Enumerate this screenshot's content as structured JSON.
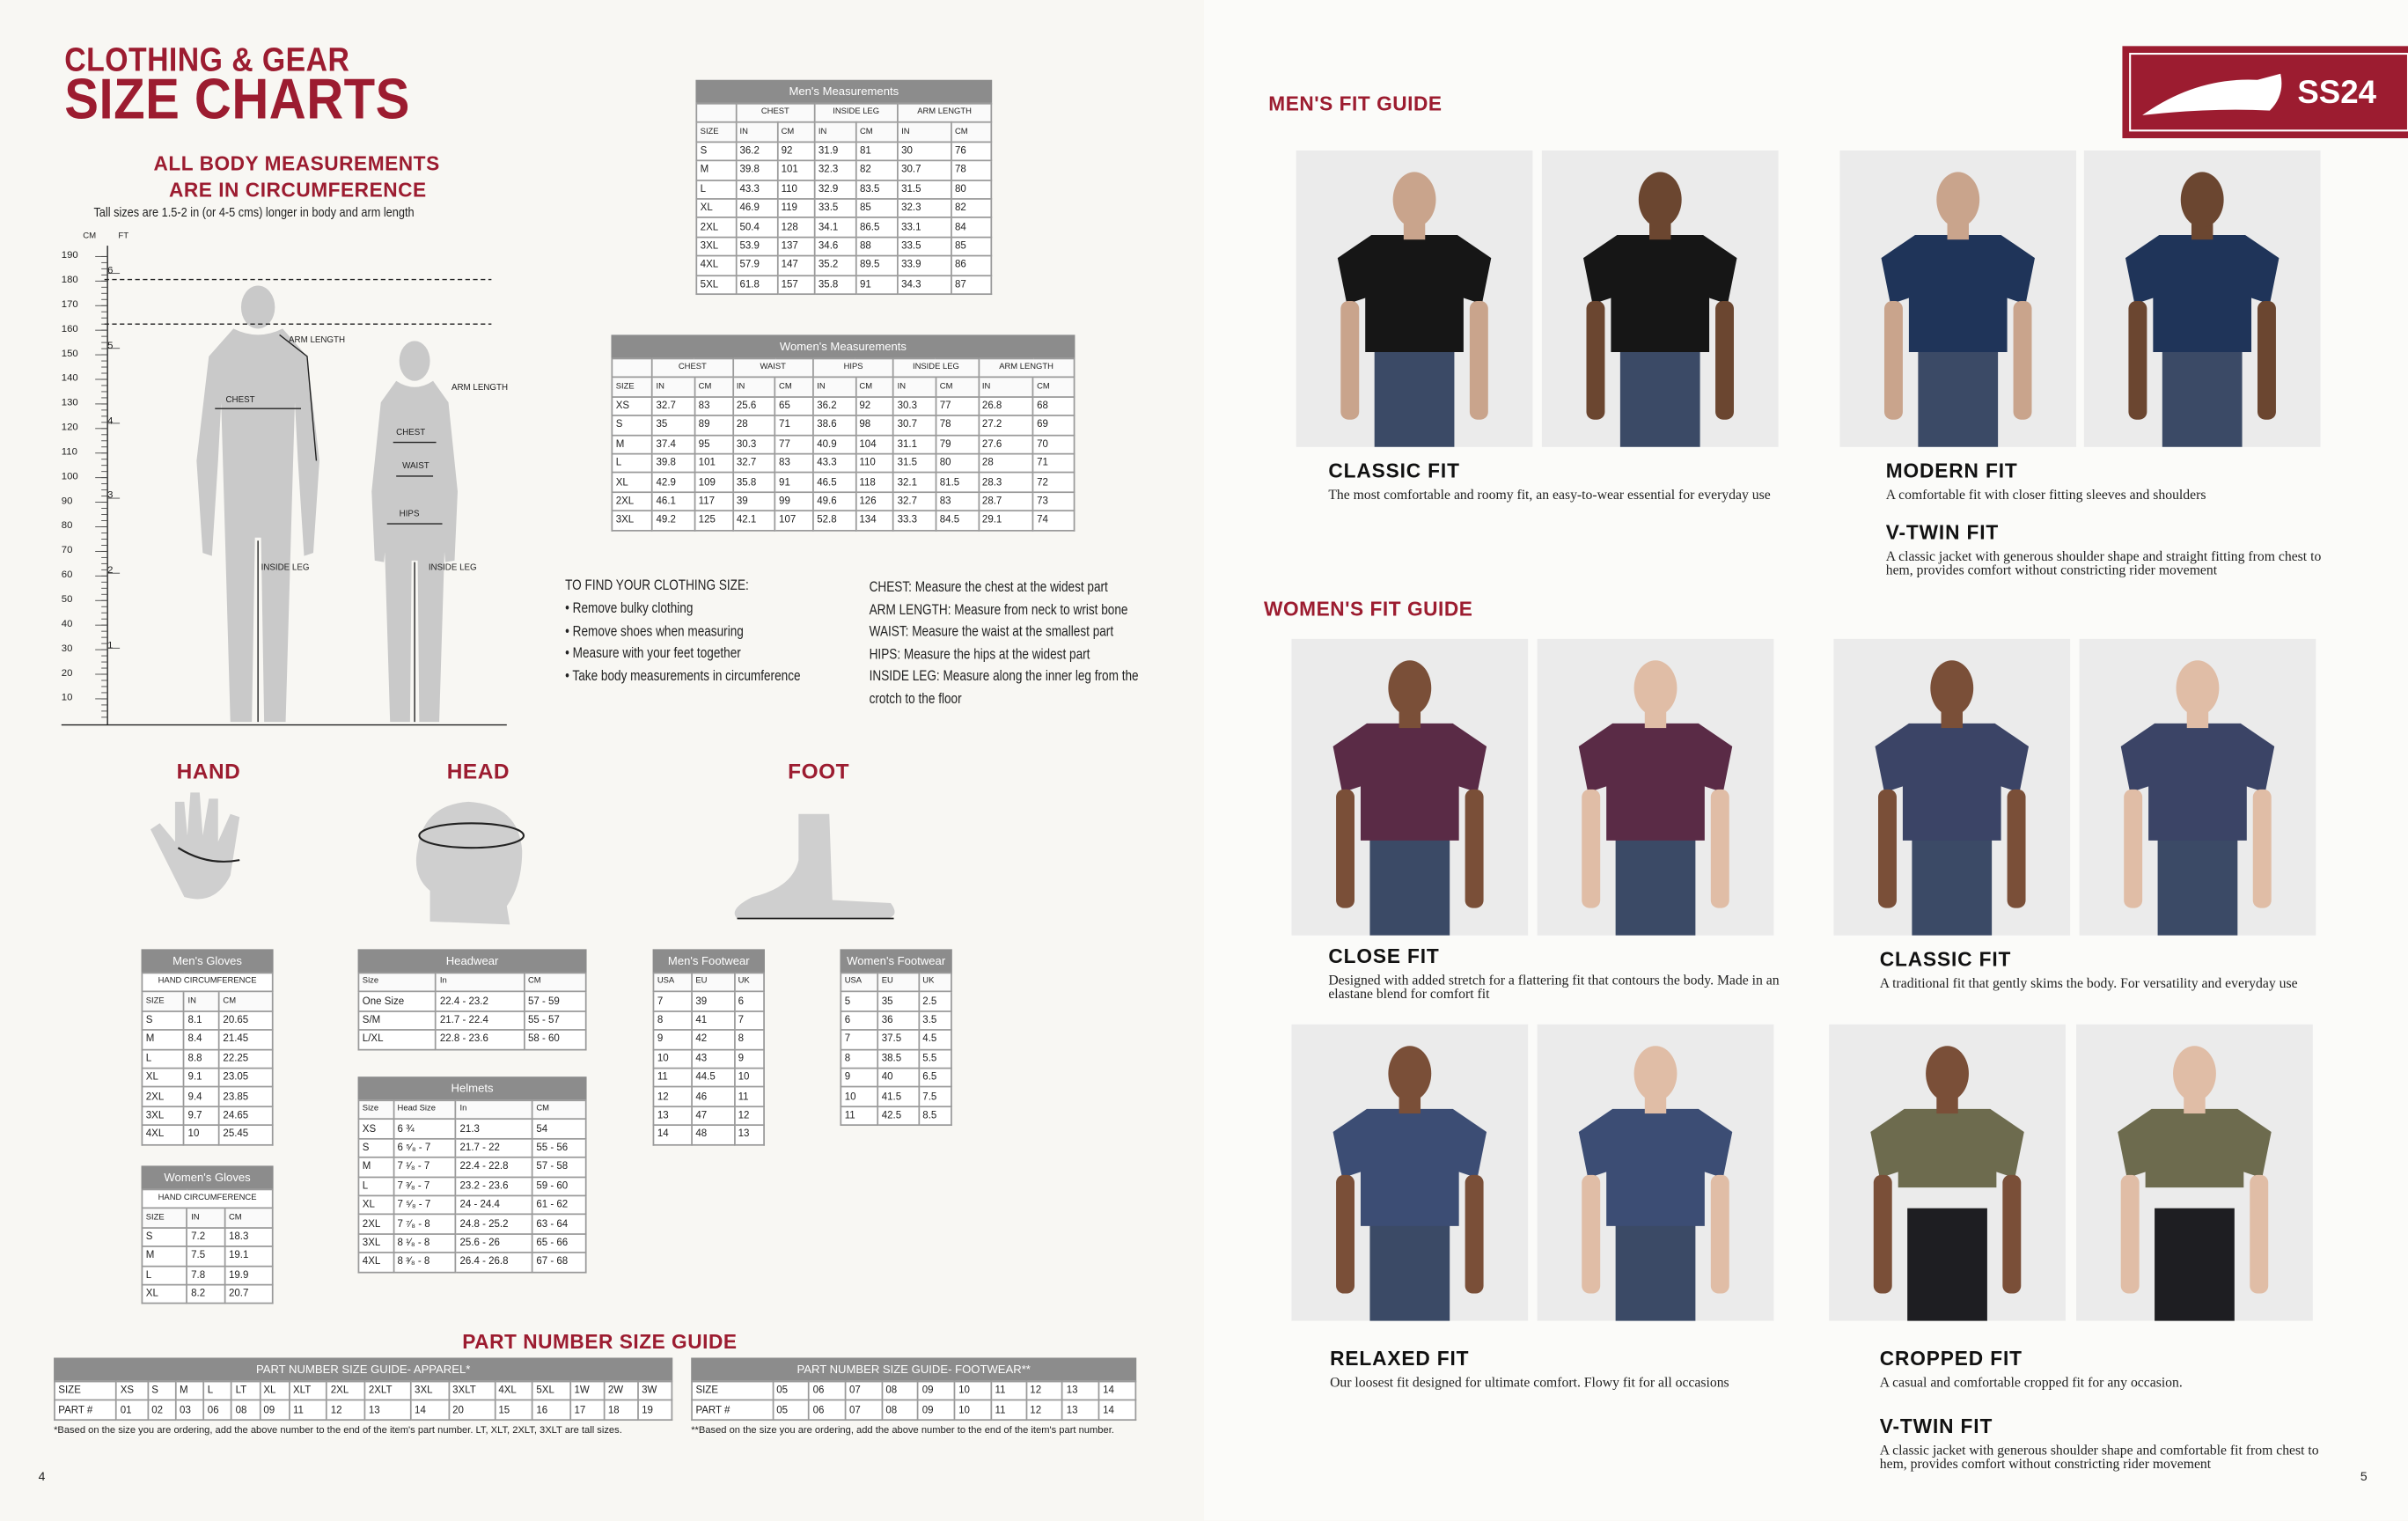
{
  "header": {
    "title_line1": "CLOTHING & GEAR",
    "title_line2": "SIZE CHARTS",
    "badge": "SS24"
  },
  "body_measurements": {
    "heading_line1": "ALL BODY MEASUREMENTS",
    "heading_line2": "ARE IN CIRCUMFERENCE",
    "note": "Tall sizes are 1.5-2 in (or 4-5 cms) longer in body and arm  length",
    "cm_label": "CM",
    "ft_label": "FT",
    "cm_ticks": [
      "190",
      "180",
      "170",
      "160",
      "150",
      "140",
      "130",
      "120",
      "110",
      "100",
      "90",
      "80",
      "70",
      "60",
      "50",
      "40",
      "30",
      "20",
      "10"
    ],
    "ft_ticks": [
      "6",
      "5",
      "4",
      "3",
      "2",
      "1"
    ],
    "figure_labels": [
      "ARM LENGTH",
      "CHEST",
      "INSIDE LEG",
      "ARM LENGTH",
      "CHEST",
      "WAIST",
      "HIPS",
      "INSIDE LEG"
    ]
  },
  "instructions": {
    "heading": "TO FIND YOUR CLOTHING SIZE:",
    "items": [
      "• Remove bulky clothing",
      "• Remove shoes when measuring",
      "• Measure with your feet together",
      "• Take body measurements in circumference"
    ],
    "definitions": [
      "CHEST: Measure the chest at the widest part",
      "ARM LENGTH: Measure from neck to wrist bone",
      "WAIST: Measure the waist at the smallest part",
      "HIPS: Measure the hips at the widest part",
      "INSIDE LEG: Measure along the inner leg from the crotch to the floor"
    ]
  },
  "sections": {
    "hand": "HAND",
    "head": "HEAD",
    "foot": "FOOT",
    "part_number": "PART NUMBER SIZE GUIDE"
  },
  "tables": {
    "mens_measurements": {
      "title": "Men's Measurements",
      "group_headers": [
        "CHEST",
        "INSIDE LEG",
        "ARM LENGTH"
      ],
      "headers": [
        "SIZE",
        "IN",
        "CM",
        "IN",
        "CM",
        "IN",
        "CM"
      ],
      "rows": [
        [
          "S",
          "36.2",
          "92",
          "31.9",
          "81",
          "30",
          "76"
        ],
        [
          "M",
          "39.8",
          "101",
          "32.3",
          "82",
          "30.7",
          "78"
        ],
        [
          "L",
          "43.3",
          "110",
          "32.9",
          "83.5",
          "31.5",
          "80"
        ],
        [
          "XL",
          "46.9",
          "119",
          "33.5",
          "85",
          "32.3",
          "82"
        ],
        [
          "2XL",
          "50.4",
          "128",
          "34.1",
          "86.5",
          "33.1",
          "84"
        ],
        [
          "3XL",
          "53.9",
          "137",
          "34.6",
          "88",
          "33.5",
          "85"
        ],
        [
          "4XL",
          "57.9",
          "147",
          "35.2",
          "89.5",
          "33.9",
          "86"
        ],
        [
          "5XL",
          "61.8",
          "157",
          "35.8",
          "91",
          "34.3",
          "87"
        ]
      ]
    },
    "womens_measurements": {
      "title": "Women's Measurements",
      "group_headers": [
        "CHEST",
        "WAIST",
        "HIPS",
        "INSIDE LEG",
        "ARM LENGTH"
      ],
      "headers": [
        "SIZE",
        "IN",
        "CM",
        "IN",
        "CM",
        "IN",
        "CM",
        "IN",
        "CM",
        "IN",
        "CM"
      ],
      "rows": [
        [
          "XS",
          "32.7",
          "83",
          "25.6",
          "65",
          "36.2",
          "92",
          "30.3",
          "77",
          "26.8",
          "68"
        ],
        [
          "S",
          "35",
          "89",
          "28",
          "71",
          "38.6",
          "98",
          "30.7",
          "78",
          "27.2",
          "69"
        ],
        [
          "M",
          "37.4",
          "95",
          "30.3",
          "77",
          "40.9",
          "104",
          "31.1",
          "79",
          "27.6",
          "70"
        ],
        [
          "L",
          "39.8",
          "101",
          "32.7",
          "83",
          "43.3",
          "110",
          "31.5",
          "80",
          "28",
          "71"
        ],
        [
          "XL",
          "42.9",
          "109",
          "35.8",
          "91",
          "46.5",
          "118",
          "32.1",
          "81.5",
          "28.3",
          "72"
        ],
        [
          "2XL",
          "46.1",
          "117",
          "39",
          "99",
          "49.6",
          "126",
          "32.7",
          "83",
          "28.7",
          "73"
        ],
        [
          "3XL",
          "49.2",
          "125",
          "42.1",
          "107",
          "52.8",
          "134",
          "33.3",
          "84.5",
          "29.1",
          "74"
        ]
      ]
    },
    "mens_gloves": {
      "title": "Men's Gloves",
      "subtitle": "HAND CIRCUMFERENCE",
      "headers": [
        "SIZE",
        "IN",
        "CM"
      ],
      "rows": [
        [
          "S",
          "8.1",
          "20.65"
        ],
        [
          "M",
          "8.4",
          "21.45"
        ],
        [
          "L",
          "8.8",
          "22.25"
        ],
        [
          "XL",
          "9.1",
          "23.05"
        ],
        [
          "2XL",
          "9.4",
          "23.85"
        ],
        [
          "3XL",
          "9.7",
          "24.65"
        ],
        [
          "4XL",
          "10",
          "25.45"
        ]
      ]
    },
    "womens_gloves": {
      "title": "Women's Gloves",
      "subtitle": "HAND CIRCUMFERENCE",
      "headers": [
        "SIZE",
        "IN",
        "CM"
      ],
      "rows": [
        [
          "S",
          "7.2",
          "18.3"
        ],
        [
          "M",
          "7.5",
          "19.1"
        ],
        [
          "L",
          "7.8",
          "19.9"
        ],
        [
          "XL",
          "8.2",
          "20.7"
        ]
      ]
    },
    "headwear": {
      "title": "Headwear",
      "headers": [
        "Size",
        "In",
        "CM"
      ],
      "rows": [
        [
          "One Size",
          "22.4 - 23.2",
          "57 - 59"
        ],
        [
          "S/M",
          "21.7 - 22.4",
          "55 - 57"
        ],
        [
          "L/XL",
          "22.8 - 23.6",
          "58 - 60"
        ]
      ]
    },
    "helmets": {
      "title": "Helmets",
      "headers": [
        "Size",
        "Head Size",
        "In",
        "CM"
      ],
      "rows": [
        [
          "XS",
          "6 ¾",
          "21.3",
          "54"
        ],
        [
          "S",
          "6 ⁵⁄₈ - 7",
          "21.7 - 22",
          "55 - 56"
        ],
        [
          "M",
          "7 ¹⁄₈ - 7",
          "22.4 - 22.8",
          "57 - 58"
        ],
        [
          "L",
          "7 ³⁄₈ - 7",
          "23.2 - 23.6",
          "59 - 60"
        ],
        [
          "XL",
          "7 ⁵⁄₈ - 7",
          "24 - 24.4",
          "61 - 62"
        ],
        [
          "2XL",
          "7 ⁷⁄₈ - 8",
          "24.8 - 25.2",
          "63 - 64"
        ],
        [
          "3XL",
          "8 ¹⁄₈ - 8",
          "25.6 - 26",
          "65 - 66"
        ],
        [
          "4XL",
          "8 ³⁄₈ - 8",
          "26.4 - 26.8",
          "67 - 68"
        ]
      ]
    },
    "mens_footwear": {
      "title": "Men's Footwear",
      "headers": [
        "USA",
        "EU",
        "UK"
      ],
      "rows": [
        [
          "7",
          "39",
          "6"
        ],
        [
          "8",
          "41",
          "7"
        ],
        [
          "9",
          "42",
          "8"
        ],
        [
          "10",
          "43",
          "9"
        ],
        [
          "11",
          "44.5",
          "10"
        ],
        [
          "12",
          "46",
          "11"
        ],
        [
          "13",
          "47",
          "12"
        ],
        [
          "14",
          "48",
          "13"
        ]
      ]
    },
    "womens_footwear": {
      "title": "Women's Footwear",
      "headers": [
        "USA",
        "EU",
        "UK"
      ],
      "rows": [
        [
          "5",
          "35",
          "2.5"
        ],
        [
          "6",
          "36",
          "3.5"
        ],
        [
          "7",
          "37.5",
          "4.5"
        ],
        [
          "8",
          "38.5",
          "5.5"
        ],
        [
          "9",
          "40",
          "6.5"
        ],
        [
          "10",
          "41.5",
          "7.5"
        ],
        [
          "11",
          "42.5",
          "8.5"
        ]
      ]
    },
    "part_apparel": {
      "title": "PART NUMBER SIZE GUIDE- APPAREL*",
      "rows": [
        [
          "SIZE",
          "XS",
          "S",
          "M",
          "L",
          "LT",
          "XL",
          "XLT",
          "2XL",
          "2XLT",
          "3XL",
          "3XLT",
          "4XL",
          "5XL",
          "1W",
          "2W",
          "3W"
        ],
        [
          "PART #",
          "01",
          "02",
          "03",
          "06",
          "08",
          "09",
          "11",
          "12",
          "13",
          "14",
          "20",
          "15",
          "16",
          "17",
          "18",
          "19"
        ]
      ],
      "footnote": "*Based on the size you are ordering, add the above number to the end of the item's part number. LT, XLT, 2XLT, 3XLT are tall sizes."
    },
    "part_footwear": {
      "title": "PART NUMBER SIZE GUIDE- FOOTWEAR**",
      "rows": [
        [
          "SIZE",
          "05",
          "06",
          "07",
          "08",
          "09",
          "10",
          "11",
          "12",
          "13",
          "14"
        ],
        [
          "PART #",
          "05",
          "06",
          "07",
          "08",
          "09",
          "10",
          "11",
          "12",
          "13",
          "14"
        ]
      ],
      "footnote": "**Based on the size you are ordering, add the above number to the end of the item's part number."
    }
  },
  "mens_fit_guide": {
    "heading": "MEN'S FIT GUIDE",
    "fits": [
      {
        "name": "CLASSIC FIT",
        "description": "The most comfortable and roomy fit, an easy-to-wear essential for everyday use"
      },
      {
        "name": "MODERN FIT",
        "description": "A comfortable fit with closer fitting sleeves and shoulders"
      },
      {
        "name": "V-TWIN FIT",
        "description": "A classic jacket with generous shoulder shape and straight fitting from chest to hem, provides comfort without constricting rider movement"
      }
    ]
  },
  "womens_fit_guide": {
    "heading": "WOMEN'S FIT GUIDE",
    "fits": [
      {
        "name": "CLOSE FIT",
        "description": "Designed with added stretch for a flattering fit that contours the body. Made in an elastane blend for comfort fit"
      },
      {
        "name": "CLASSIC FIT",
        "description": "A traditional fit that gently skims the body. For versatility and everyday use"
      },
      {
        "name": "RELAXED FIT",
        "description": "Our loosest fit designed for ultimate comfort. Flowy fit for all occasions"
      },
      {
        "name": "CROPPED FIT",
        "description": "A casual and comfortable cropped fit for any occasion."
      },
      {
        "name": "V-TWIN FIT",
        "description": "A classic jacket with generous shoulder shape and comfortable fit from chest to hem, provides comfort without constricting rider movement"
      }
    ]
  },
  "page_numbers": [
    "4",
    "5"
  ]
}
